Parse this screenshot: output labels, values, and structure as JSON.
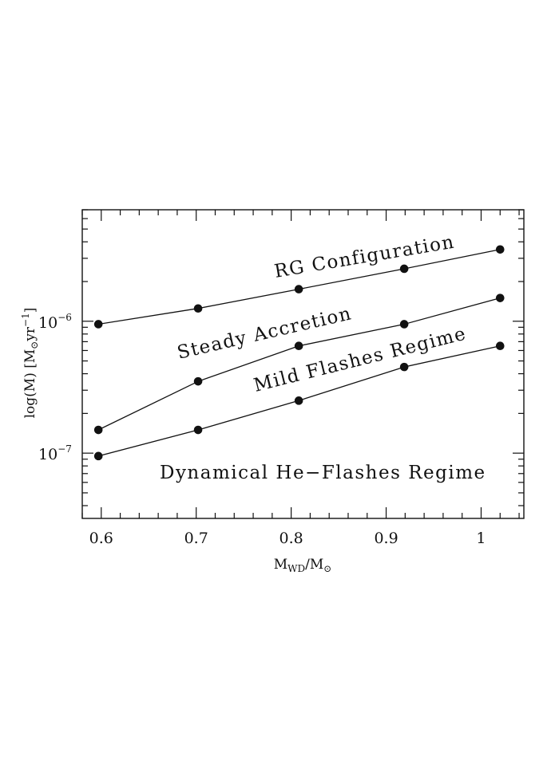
{
  "chart_data": {
    "type": "line",
    "x": [
      0.597,
      0.702,
      0.808,
      0.919,
      1.02
    ],
    "series": [
      {
        "values": [
          9.5e-07,
          1.25e-06,
          1.75e-06,
          2.5e-06,
          3.5e-06
        ]
      },
      {
        "values": [
          1.5e-07,
          3.5e-07,
          6.5e-07,
          9.5e-07,
          1.5e-06
        ]
      },
      {
        "values": [
          9.5e-08,
          1.5e-07,
          2.5e-07,
          4.5e-07,
          6.5e-07
        ]
      }
    ],
    "xlim": [
      0.58,
      1.045
    ],
    "ylim": [
      3.2e-08,
      7e-06
    ],
    "yscale": "log",
    "grid": false,
    "x_ticks": [
      {
        "value": 0.6,
        "label": "0.6"
      },
      {
        "value": 0.7,
        "label": "0.7"
      },
      {
        "value": 0.8,
        "label": "0.8"
      },
      {
        "value": 0.9,
        "label": "0.9"
      },
      {
        "value": 1.0,
        "label": "1"
      }
    ],
    "y_ticks": [
      {
        "value": 1e-07,
        "base": "10",
        "exp": "−7"
      },
      {
        "value": 1e-06,
        "base": "10",
        "exp": "−6"
      }
    ],
    "xlabel": {
      "main": "M",
      "sub": "WD",
      "rest": "/M",
      "sub2": "⊙"
    },
    "ylabel": {
      "pre": "log(",
      "mdot": "M",
      "mid": ") [M",
      "sun": "⊙",
      "unit": "yr",
      "exp": "−1",
      "post": "]"
    },
    "annotations": [
      "RG Configuration",
      "Steady Accretion",
      "Mild Flashes Regime",
      "Dynamical He−Flashes Regime"
    ],
    "colors": {
      "line": "#111111",
      "marker": "#111111"
    }
  }
}
